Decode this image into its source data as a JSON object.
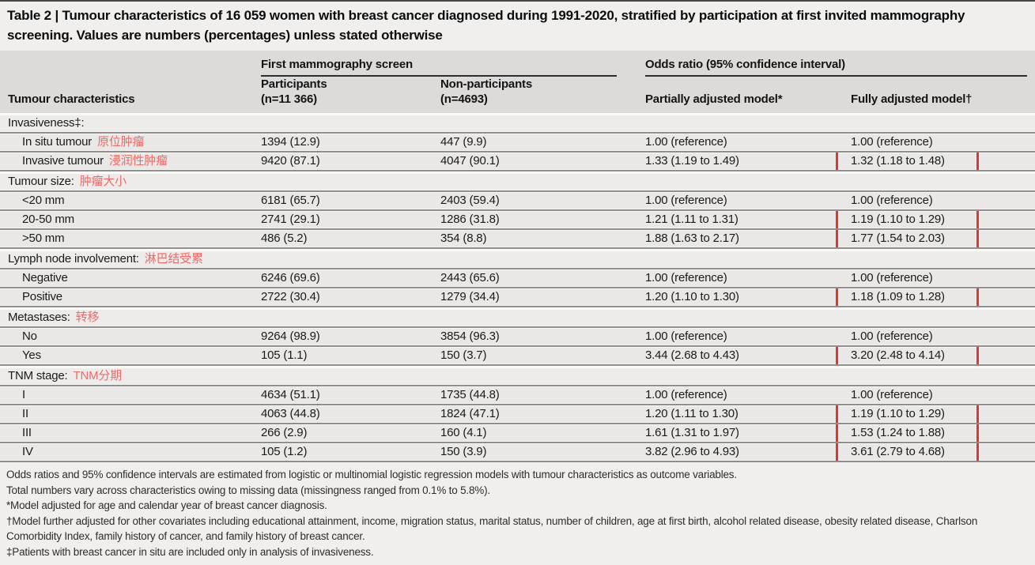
{
  "title": "Table 2 | Tumour characteristics of 16 059 women with breast cancer diagnosed during 1991-2020, stratified by participation at first invited mammography screening. Values are numbers (percentages) unless stated otherwise",
  "header": {
    "row_header": "Tumour characteristics",
    "group_first_mammography": "First mammography screen",
    "group_odds_ratio": "Odds ratio (95% confidence interval)",
    "participants_line1": "Participants",
    "participants_line2": "(n=11 366)",
    "non_participants_line1": "Non-participants",
    "non_participants_line2": "(n=4693)",
    "partially_adjusted": "Partially adjusted model*",
    "fully_adjusted": "Fully adjusted model†"
  },
  "table": {
    "sections": [
      {
        "label": "Invasiveness‡:",
        "label_zh": "",
        "rows": [
          {
            "label": "In situ tumour",
            "label_zh": "原位肿瘤",
            "participants": "1394 (12.9)",
            "non_participants": "447 (9.9)",
            "partially": "1.00 (reference)",
            "fully": "1.00 (reference)",
            "boxed": false
          },
          {
            "label": "Invasive tumour",
            "label_zh": "浸润性肿瘤",
            "participants": "9420 (87.1)",
            "non_participants": "4047 (90.1)",
            "partially": "1.33 (1.19 to 1.49)",
            "fully": "1.32 (1.18 to 1.48)",
            "boxed": true
          }
        ]
      },
      {
        "label": "Tumour size:",
        "label_zh": "肿瘤大小",
        "rows": [
          {
            "label": "<20 mm",
            "label_zh": "",
            "participants": "6181 (65.7)",
            "non_participants": "2403 (59.4)",
            "partially": "1.00 (reference)",
            "fully": "1.00 (reference)",
            "boxed": false
          },
          {
            "label": "20-50 mm",
            "label_zh": "",
            "participants": "2741 (29.1)",
            "non_participants": "1286 (31.8)",
            "partially": "1.21 (1.11 to 1.31)",
            "fully": "1.19 (1.10 to 1.29)",
            "boxed": true
          },
          {
            "label": ">50 mm",
            "label_zh": "",
            "participants": "486 (5.2)",
            "non_participants": "354 (8.8)",
            "partially": "1.88 (1.63 to 2.17)",
            "fully": "1.77 (1.54 to 2.03)",
            "boxed": true
          }
        ]
      },
      {
        "label": "Lymph node involvement:",
        "label_zh": "淋巴结受累",
        "rows": [
          {
            "label": "Negative",
            "label_zh": "",
            "participants": "6246 (69.6)",
            "non_participants": "2443 (65.6)",
            "partially": "1.00 (reference)",
            "fully": "1.00 (reference)",
            "boxed": false
          },
          {
            "label": "Positive",
            "label_zh": "",
            "participants": "2722 (30.4)",
            "non_participants": "1279 (34.4)",
            "partially": "1.20 (1.10 to 1.30)",
            "fully": "1.18 (1.09 to 1.28)",
            "boxed": true
          }
        ]
      },
      {
        "label": "Metastases:",
        "label_zh": "转移",
        "rows": [
          {
            "label": "No",
            "label_zh": "",
            "participants": "9264 (98.9)",
            "non_participants": "3854 (96.3)",
            "partially": "1.00 (reference)",
            "fully": "1.00 (reference)",
            "boxed": false
          },
          {
            "label": "Yes",
            "label_zh": "",
            "participants": "105 (1.1)",
            "non_participants": "150 (3.7)",
            "partially": "3.44 (2.68 to 4.43)",
            "fully": "3.20 (2.48 to 4.14)",
            "boxed": true
          }
        ]
      },
      {
        "label": "TNM stage:",
        "label_zh": "TNM分期",
        "rows": [
          {
            "label": "I",
            "label_zh": "",
            "participants": "4634 (51.1)",
            "non_participants": "1735 (44.8)",
            "partially": "1.00 (reference)",
            "fully": "1.00 (reference)",
            "boxed": false
          },
          {
            "label": "II",
            "label_zh": "",
            "participants": "4063 (44.8)",
            "non_participants": "1824 (47.1)",
            "partially": "1.20 (1.11 to 1.30)",
            "fully": "1.19 (1.10 to 1.29)",
            "boxed": true
          },
          {
            "label": "III",
            "label_zh": "",
            "participants": "266 (2.9)",
            "non_participants": "160 (4.1)",
            "partially": "1.61 (1.31 to 1.97)",
            "fully": "1.53 (1.24 to 1.88)",
            "boxed": true
          },
          {
            "label": "IV",
            "label_zh": "",
            "participants": "105 (1.2)",
            "non_participants": "150 (3.9)",
            "partially": "3.82 (2.96 to 4.93)",
            "fully": "3.61 (2.79 to 4.68)",
            "boxed": true
          }
        ]
      }
    ]
  },
  "footnotes": [
    "Odds ratios and 95% confidence intervals are estimated from logistic or multinomial logistic regression models with tumour characteristics as outcome variables.",
    "Total numbers vary across characteristics owing to missing data (missingness ranged from 0.1% to 5.8%).",
    "*Model adjusted for age and calendar year of breast cancer diagnosis.",
    "†Model further adjusted for other covariates including educational attainment, income, migration status, marital status, number of children, age at first birth, alcohol related disease, obesity related disease, Charlson Comorbidity Index, family history of cancer, and family history of breast cancer.",
    "‡Patients with breast cancer in situ are included only in analysis of invasiveness."
  ],
  "colors": {
    "annotation_red": "#ee6a66",
    "highlight_box_red": "#dd382d",
    "header_band_gray": "#dcdbd9",
    "row_gray": "#e9e8e6"
  }
}
